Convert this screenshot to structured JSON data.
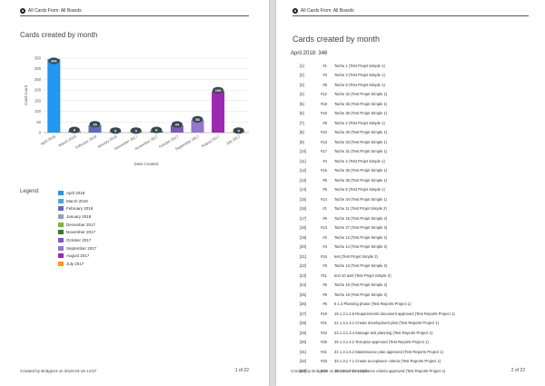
{
  "header": {
    "label": "All Cards From: All Boards"
  },
  "page1": {
    "title": "Cards created by month",
    "legend_label": "Legend:",
    "footer": "Created by Bridge24 on 2018-04-19 14:57",
    "page_num": "1 of 22"
  },
  "page2": {
    "title": "Cards created by month",
    "section_heading": "April 2018: 346",
    "footer": "Created by Bridge24 on 2018-04-19 14:57",
    "page_num": "2 of 22",
    "rows": [
      {
        "idx": "[1]",
        "num": "#1",
        "name": "Tache 1 (Test Projet Simple 1)"
      },
      {
        "idx": "[2]",
        "num": "#3",
        "name": "Tache 3 (Test Projet Simple 1)"
      },
      {
        "idx": "[3]",
        "num": "#8",
        "name": "Tache 8 (Test Projet Simple 1)"
      },
      {
        "idx": "[4]",
        "num": "#12",
        "name": "Tache 32 (Test Projet Simple 1)"
      },
      {
        "idx": "[5]",
        "num": "#18",
        "name": "Tache 35 (Test Projet Simple 1)"
      },
      {
        "idx": "[6]",
        "num": "#16",
        "name": "Tache 36 (Test Projet Simple 1)"
      },
      {
        "idx": "[7]",
        "num": "#9",
        "name": "Tache 2 (Test Projet Simple 1)"
      },
      {
        "idx": "[8]",
        "num": "#10",
        "name": "Tache 30 (Test Projet Simple 1)"
      },
      {
        "idx": "[9]",
        "num": "#13",
        "name": "Tache 33 (Test Projet Simple 1)"
      },
      {
        "idx": "[10]",
        "num": "#17",
        "name": "Tache 31 (Test Projet Simple 1)"
      },
      {
        "idx": "[11]",
        "num": "#4",
        "name": "Tache 4 (Test Projet Simple 1)"
      },
      {
        "idx": "[12]",
        "num": "#15",
        "name": "Tache 35 (Test Projet Simple 1)"
      },
      {
        "idx": "[13]",
        "num": "#6",
        "name": "Tache 36 (Test Projet Simple 1)"
      },
      {
        "idx": "[14]",
        "num": "#5",
        "name": "Tache 6 (Test Projet Simple 1)"
      },
      {
        "idx": "[15]",
        "num": "#14",
        "name": "Tache 34 (Test Projet Simple 1)"
      },
      {
        "idx": "[16]",
        "num": "#1",
        "name": "Tache 11 (Test Projet Simple 2)"
      },
      {
        "idx": "[17]",
        "num": "#5",
        "name": "Tache 15 (Test Projet Simple 2)"
      },
      {
        "idx": "[18]",
        "num": "#13",
        "name": "Tache 27 (Test Projet Simple 2)"
      },
      {
        "idx": "[19]",
        "num": "#2",
        "name": "Tache 12 (Test Projet Simple 2)"
      },
      {
        "idx": "[20]",
        "num": "#4",
        "name": "Tache 14 (Test Projet Simple 2)"
      },
      {
        "idx": "[21]",
        "num": "#16",
        "name": "test (Test Projet Simple 2)"
      },
      {
        "idx": "[22]",
        "num": "#3",
        "name": "Tache 13 (Test Projet Simple 2)"
      },
      {
        "idx": "[23]",
        "num": "#11",
        "name": "test 10 avril (Test Projet Simple 2)"
      },
      {
        "idx": "[24]",
        "num": "#6",
        "name": "Tache 16 (Test Projet Simple 2)"
      },
      {
        "idx": "[25]",
        "num": "#9",
        "name": "Tache 19 (Test Projet Simple 2)"
      },
      {
        "idx": "[26]",
        "num": "#6",
        "name": "6 1.3 Planning phase (Test Reports Project 1)"
      },
      {
        "idx": "[27]",
        "num": "#19",
        "name": "19 1.3.1.2.8 Requirements document approved (Test Reports Project 1)"
      },
      {
        "idx": "[28]",
        "num": "#21",
        "name": "21 1.3.1.3.1 Create development plan (Test Reports Project 1)"
      },
      {
        "idx": "[29]",
        "num": "#23",
        "name": "23 1.3.1.3.4 Manage test planning (Test Reports Project 1)"
      },
      {
        "idx": "[30]",
        "num": "#25",
        "name": "25 1.3.1.4.2 Test plan approved (Test Reports Project 1)"
      },
      {
        "idx": "[31]",
        "num": "#31",
        "name": "31 1.3.1.6.2 Maintenance plan approved (Test Reports Project 1)"
      },
      {
        "idx": "[32]",
        "num": "#33",
        "name": "33 1.3.1.7.1 Create acceptance criteria (Test Reports Project 1)"
      },
      {
        "idx": "[33]",
        "num": "#34",
        "name": "34 1.3.1.7.2 Acceptance criteria approved (Test Reports Project 1)"
      }
    ]
  },
  "chart_data": {
    "type": "bar",
    "title": "Cards created by month",
    "xlabel": "Date Created",
    "ylabel": "Card count",
    "ylim": [
      0,
      350
    ],
    "yticks": [
      0,
      50,
      100,
      150,
      200,
      250,
      300,
      350
    ],
    "grid": true,
    "legend": "bottom-left",
    "categories": [
      "April 2018",
      "March 2018",
      "February 2018",
      "January 2018",
      "December 2017",
      "November 2017",
      "October 2017",
      "September 2017",
      "August 2017",
      "July 2017"
    ],
    "values": [
      346,
      8,
      35,
      5,
      5,
      8,
      34,
      58,
      195,
      5
    ],
    "colors": [
      "#2196f3",
      "#4aa6e0",
      "#5c6bc0",
      "#90a4ae",
      "#7cb342",
      "#2e7d32",
      "#7e57c2",
      "#9575cd",
      "#9c27b0",
      "#ff9800"
    ]
  }
}
